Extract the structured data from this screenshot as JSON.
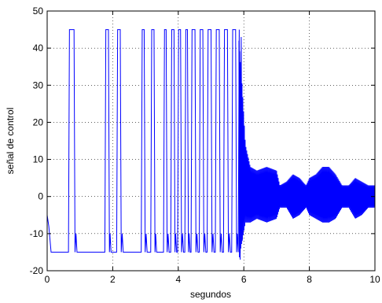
{
  "chart_data": {
    "type": "line",
    "title": "",
    "xlabel": "segundos",
    "ylabel": "señal de control",
    "xlim": [
      0,
      10
    ],
    "ylim": [
      -20,
      50
    ],
    "xticks": [
      0,
      2,
      4,
      6,
      8,
      10
    ],
    "yticks": [
      -20,
      -10,
      0,
      10,
      20,
      30,
      40,
      50
    ],
    "grid": true,
    "line_color": "#0000ff",
    "series": [
      {
        "name": "",
        "description": "bang-bang control switching between 45 and -15 with increasing frequency until ~5.9 s, then oscillation of about ±5 around 0",
        "x": [
          0.0,
          0.05,
          0.12,
          0.65,
          0.68,
          0.82,
          0.85,
          0.88,
          0.91,
          1.76,
          1.79,
          1.87,
          1.9,
          1.92,
          1.95,
          2.12,
          2.15,
          2.23,
          2.26,
          2.29,
          2.32,
          2.87,
          2.9,
          2.96,
          2.99,
          3.02,
          3.05,
          3.16,
          3.19,
          3.26,
          3.29,
          3.31,
          3.34,
          3.55,
          3.58,
          3.63,
          3.66,
          3.69,
          3.72,
          3.77,
          3.8,
          3.87,
          3.9,
          3.92,
          3.95,
          3.98,
          4.01,
          4.07,
          4.1,
          4.13,
          4.16,
          4.2,
          4.23,
          4.28,
          4.31,
          4.33,
          4.36,
          4.39,
          4.42,
          4.51,
          4.54,
          4.57,
          4.6,
          4.64,
          4.67,
          4.75,
          4.78,
          4.81,
          4.84,
          4.88,
          4.91,
          5.0,
          5.03,
          5.06,
          5.09,
          5.13,
          5.16,
          5.25,
          5.28,
          5.31,
          5.34,
          5.38,
          5.41,
          5.5,
          5.53,
          5.56,
          5.59,
          5.63,
          5.66,
          5.75,
          5.78,
          5.8,
          5.83,
          5.86,
          5.89,
          5.92,
          5.95,
          6.0,
          6.1,
          6.3,
          6.5,
          6.8,
          7.0,
          7.3,
          7.6,
          7.8,
          8.0,
          8.3,
          8.6,
          8.9,
          9.1,
          9.4,
          9.7,
          10.0
        ],
        "y": [
          -5,
          -8,
          -15,
          -15,
          45,
          45,
          -15,
          -10,
          -15,
          -15,
          45,
          45,
          -15,
          -10,
          -15,
          -15,
          45,
          45,
          -15,
          -10,
          -15,
          -15,
          45,
          45,
          -15,
          -10,
          -15,
          -15,
          45,
          45,
          -15,
          -10,
          -15,
          -15,
          45,
          45,
          -15,
          -10,
          -15,
          -15,
          45,
          45,
          -15,
          -10,
          -15,
          -15,
          45,
          45,
          -15,
          -10,
          -15,
          -15,
          45,
          45,
          -15,
          -10,
          -15,
          -15,
          45,
          45,
          -15,
          -10,
          -15,
          -15,
          45,
          45,
          -15,
          -10,
          -15,
          -15,
          45,
          45,
          -15,
          -10,
          -15,
          -15,
          45,
          45,
          -15,
          -10,
          -15,
          -15,
          45,
          45,
          -15,
          -10,
          -15,
          -15,
          45,
          45,
          -15,
          -10,
          -15,
          45,
          -17,
          43,
          -12,
          15,
          0,
          0,
          0,
          0,
          0,
          0,
          0,
          0,
          0,
          0,
          0,
          0,
          0,
          0,
          0,
          0
        ],
        "oscillation_envelope": {
          "x": [
            5.85,
            5.95,
            6.05,
            6.2,
            6.4,
            6.7,
            7.0,
            7.1,
            7.3,
            7.5,
            7.7,
            7.9,
            8.0,
            8.2,
            8.4,
            8.6,
            8.8,
            9.0,
            9.2,
            9.4,
            9.6,
            9.8,
            10.0
          ],
          "upper": [
            42,
            30,
            14,
            8,
            7,
            8,
            7,
            3,
            4,
            6,
            5,
            3,
            5,
            6,
            8,
            8,
            6,
            3,
            3,
            5,
            4,
            3,
            3
          ],
          "lower": [
            -17,
            -12,
            -7,
            -7,
            -6,
            -7,
            -6,
            -3,
            -3,
            -6,
            -5,
            -3,
            -5,
            -6,
            -7,
            -7,
            -6,
            -3,
            -3,
            -6,
            -5,
            -3,
            -3
          ]
        }
      }
    ]
  }
}
